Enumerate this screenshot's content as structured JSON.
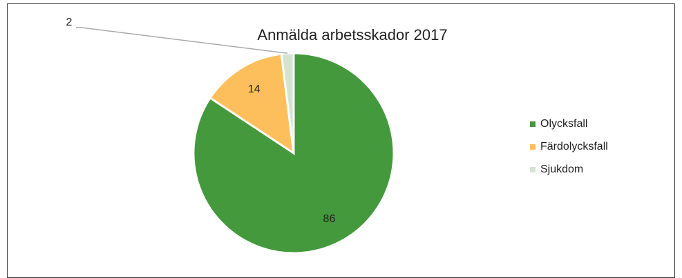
{
  "chart_data": {
    "type": "pie",
    "title": "Anmälda arbetsskador 2017",
    "categories": [
      "Olycksfall",
      "Färdolycksfall",
      "Sjukdom"
    ],
    "values": [
      86,
      14,
      2
    ],
    "colors": [
      "#43993b",
      "#fdbf5b",
      "#d5e3d3"
    ],
    "legend": "right"
  }
}
